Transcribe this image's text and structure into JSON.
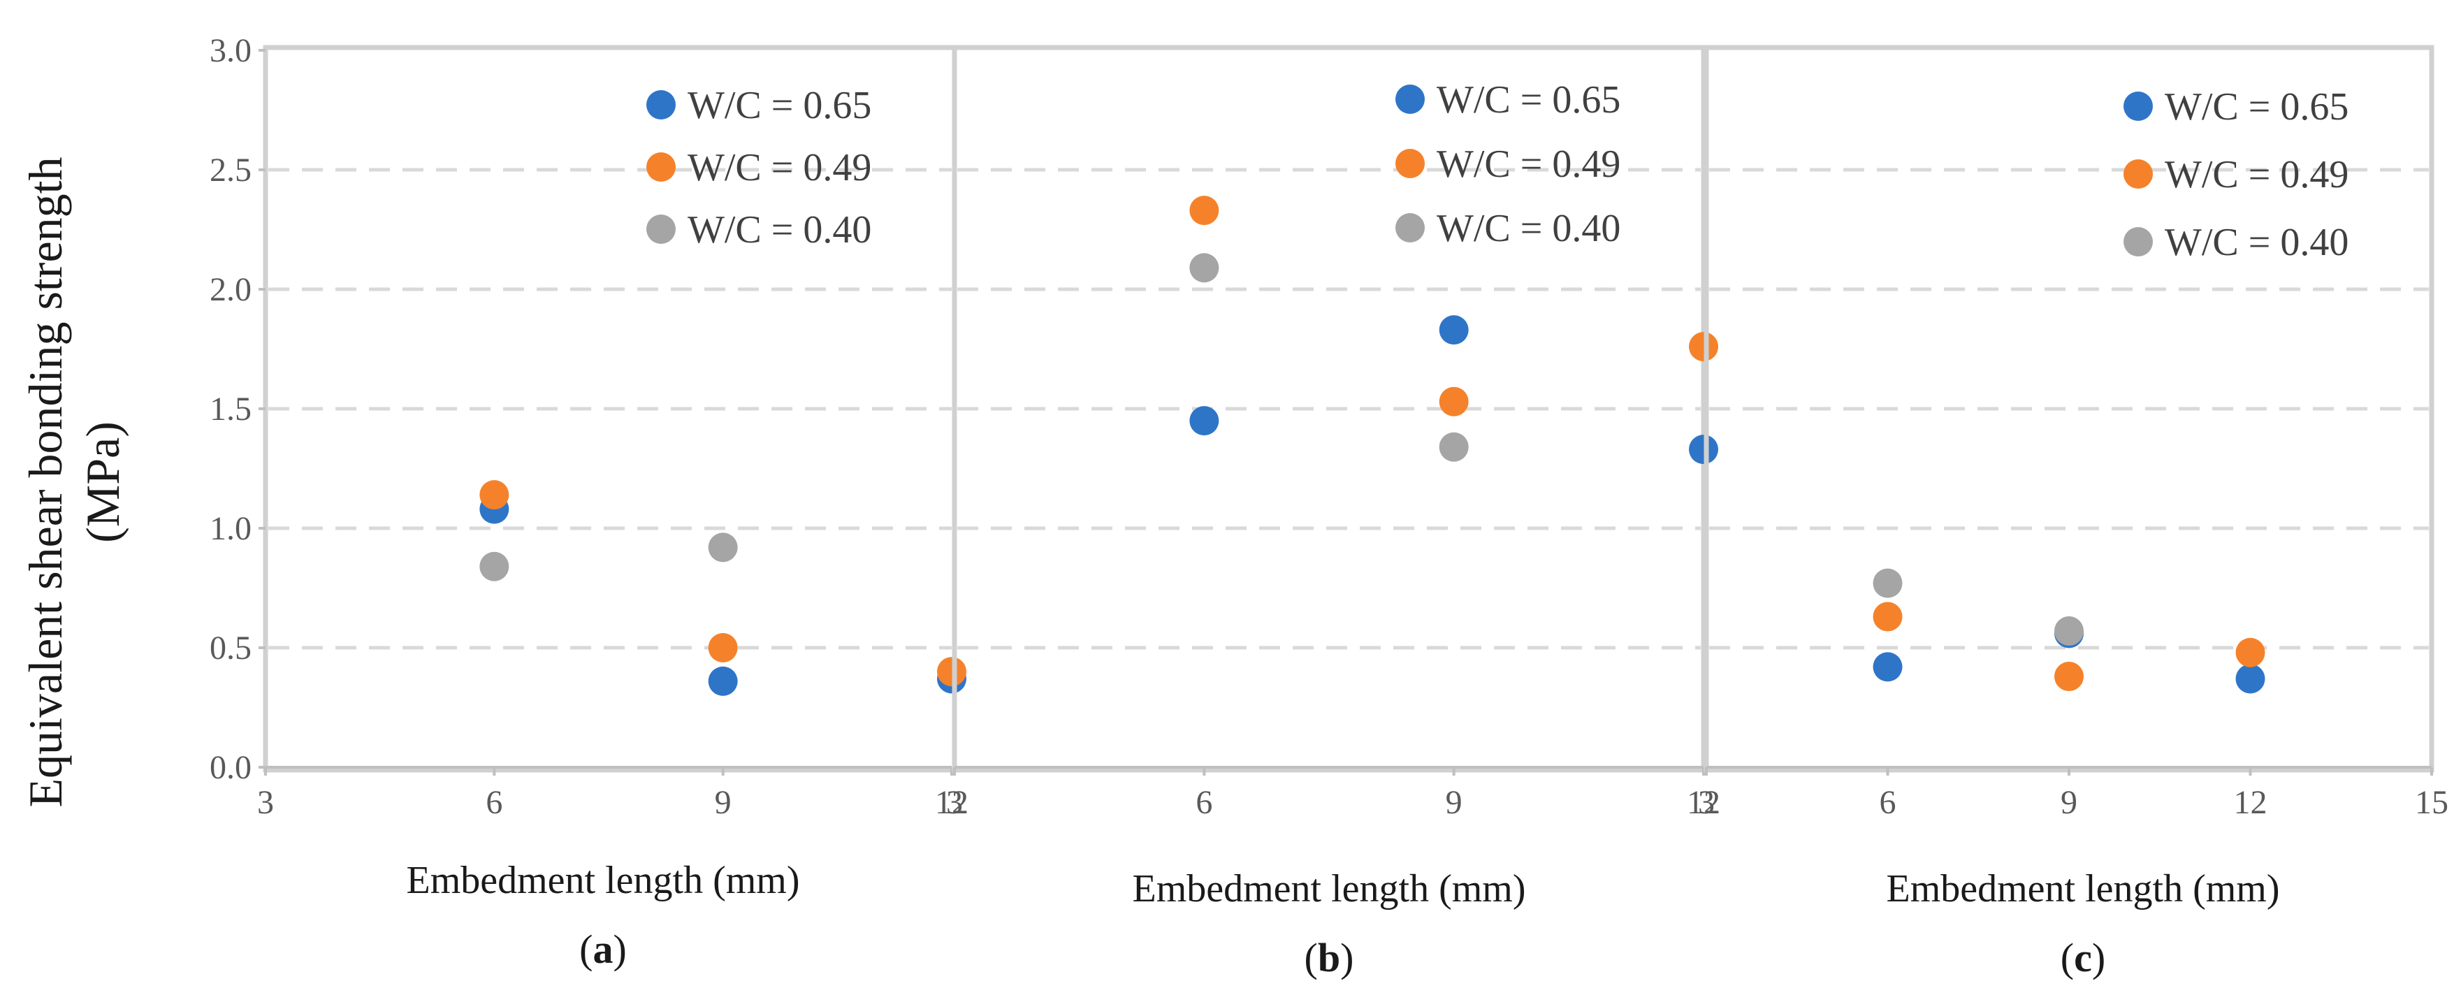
{
  "figure": {
    "ylabel_line1": "Equivalent shear bonding strength",
    "ylabel_line2": "(MPa)",
    "y_ticks": [
      "0.0",
      "0.5",
      "1.0",
      "1.5",
      "2.0",
      "2.5",
      "3.0"
    ]
  },
  "chart_data": [
    {
      "type": "scatter",
      "panel_label": "(a)",
      "panel_letter": "a",
      "xlabel": "Embedment length (mm)",
      "ylabel": "Equivalent shear bonding strength (MPa)",
      "xlim": [
        3,
        12
      ],
      "ylim": [
        0,
        3.0
      ],
      "x_ticks": [
        "3",
        "6",
        "9",
        "12"
      ],
      "series": [
        {
          "name": "W/C = 0.65",
          "color": "#2e75c8",
          "points": [
            [
              6,
              1.08
            ],
            [
              9,
              0.36
            ],
            [
              12,
              0.37
            ]
          ]
        },
        {
          "name": "W/C = 0.49",
          "color": "#f5822a",
          "points": [
            [
              6,
              1.14
            ],
            [
              9,
              0.5
            ],
            [
              12,
              0.4
            ]
          ]
        },
        {
          "name": "W/C = 0.40",
          "color": "#a5a5a5",
          "points": [
            [
              6,
              0.84
            ],
            [
              9,
              0.92
            ]
          ]
        }
      ]
    },
    {
      "type": "scatter",
      "panel_label": "(b)",
      "panel_letter": "b",
      "xlabel": "Embedment length (mm)",
      "ylabel": "Equivalent shear bonding strength (MPa)",
      "xlim": [
        3,
        12
      ],
      "ylim": [
        0,
        3.0
      ],
      "x_ticks": [
        "3",
        "6",
        "9",
        "12"
      ],
      "series": [
        {
          "name": "W/C = 0.65",
          "color": "#2e75c8",
          "points": [
            [
              6,
              1.45
            ],
            [
              9,
              1.83
            ],
            [
              12,
              1.33
            ]
          ]
        },
        {
          "name": "W/C = 0.49",
          "color": "#f5822a",
          "points": [
            [
              6,
              2.33
            ],
            [
              9,
              1.53
            ],
            [
              12,
              1.76
            ]
          ]
        },
        {
          "name": "W/C = 0.40",
          "color": "#a5a5a5",
          "points": [
            [
              6,
              2.09
            ],
            [
              9,
              1.34
            ]
          ]
        }
      ]
    },
    {
      "type": "scatter",
      "panel_label": "(c)",
      "panel_letter": "c",
      "xlabel": "Embedment length (mm)",
      "ylabel": "Equivalent shear bonding strength (MPa)",
      "xlim": [
        3,
        15
      ],
      "ylim": [
        0,
        3.0
      ],
      "x_ticks": [
        "3",
        "6",
        "9",
        "12",
        "15"
      ],
      "series": [
        {
          "name": "W/C = 0.65",
          "color": "#2e75c8",
          "points": [
            [
              6,
              0.42
            ],
            [
              9,
              0.56
            ],
            [
              12,
              0.37
            ]
          ]
        },
        {
          "name": "W/C = 0.49",
          "color": "#f5822a",
          "points": [
            [
              6,
              0.63
            ],
            [
              9,
              0.38
            ],
            [
              12,
              0.48
            ]
          ]
        },
        {
          "name": "W/C = 0.40",
          "color": "#a5a5a5",
          "points": [
            [
              6,
              0.77
            ],
            [
              9,
              0.57
            ]
          ]
        }
      ]
    }
  ]
}
